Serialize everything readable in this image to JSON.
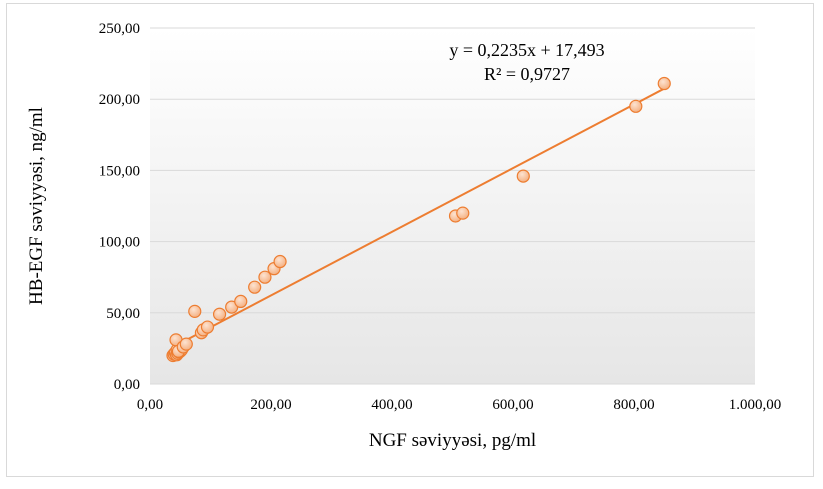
{
  "chart_data": {
    "type": "scatter",
    "title": "",
    "xlabel": "NGF səviyyəsi, pg/ml",
    "ylabel": "HB-EGF səviyyəsi, ng/ml",
    "xlim": [
      0,
      1000
    ],
    "ylim": [
      0,
      250
    ],
    "x_ticks": [
      "0,00",
      "200,00",
      "400,00",
      "600,00",
      "800,00",
      "1.000,00"
    ],
    "y_ticks": [
      "0,00",
      "50,00",
      "100,00",
      "150,00",
      "200,00",
      "250,00"
    ],
    "grid": "horizontal",
    "legend": "none",
    "series": [
      {
        "points": [
          {
            "x": 38,
            "y": 20
          },
          {
            "x": 40,
            "y": 21
          },
          {
            "x": 42,
            "y": 22
          },
          {
            "x": 44,
            "y": 20.5
          },
          {
            "x": 46,
            "y": 21.5
          },
          {
            "x": 48,
            "y": 22.5
          },
          {
            "x": 50,
            "y": 23
          },
          {
            "x": 45,
            "y": 24
          },
          {
            "x": 52,
            "y": 24
          },
          {
            "x": 43,
            "y": 31
          },
          {
            "x": 47,
            "y": 23
          },
          {
            "x": 55,
            "y": 26
          },
          {
            "x": 60,
            "y": 28
          },
          {
            "x": 74,
            "y": 51
          },
          {
            "x": 85,
            "y": 36
          },
          {
            "x": 88,
            "y": 38
          },
          {
            "x": 95,
            "y": 40
          },
          {
            "x": 115,
            "y": 49
          },
          {
            "x": 135,
            "y": 54
          },
          {
            "x": 150,
            "y": 58
          },
          {
            "x": 173,
            "y": 68
          },
          {
            "x": 190,
            "y": 75
          },
          {
            "x": 205,
            "y": 81
          },
          {
            "x": 215,
            "y": 86
          },
          {
            "x": 505,
            "y": 118
          },
          {
            "x": 517,
            "y": 120
          },
          {
            "x": 617,
            "y": 146
          },
          {
            "x": 803,
            "y": 195
          },
          {
            "x": 850,
            "y": 211
          }
        ]
      }
    ],
    "trendline": {
      "slope": 0.2235,
      "intercept": 17.493,
      "x_range": [
        40,
        850
      ],
      "equation": "y = 0,2235x + 17,493",
      "r_squared": "R² = 0,9727"
    },
    "colors": {
      "marker_fill": "#f4b183",
      "marker_stroke": "#ed7d31",
      "trendline": "#ed7d31",
      "gridline": "#d9d9d9",
      "plot_gradient_top": "#ffffff",
      "plot_gradient_bottom": "#e6e6e6"
    }
  }
}
